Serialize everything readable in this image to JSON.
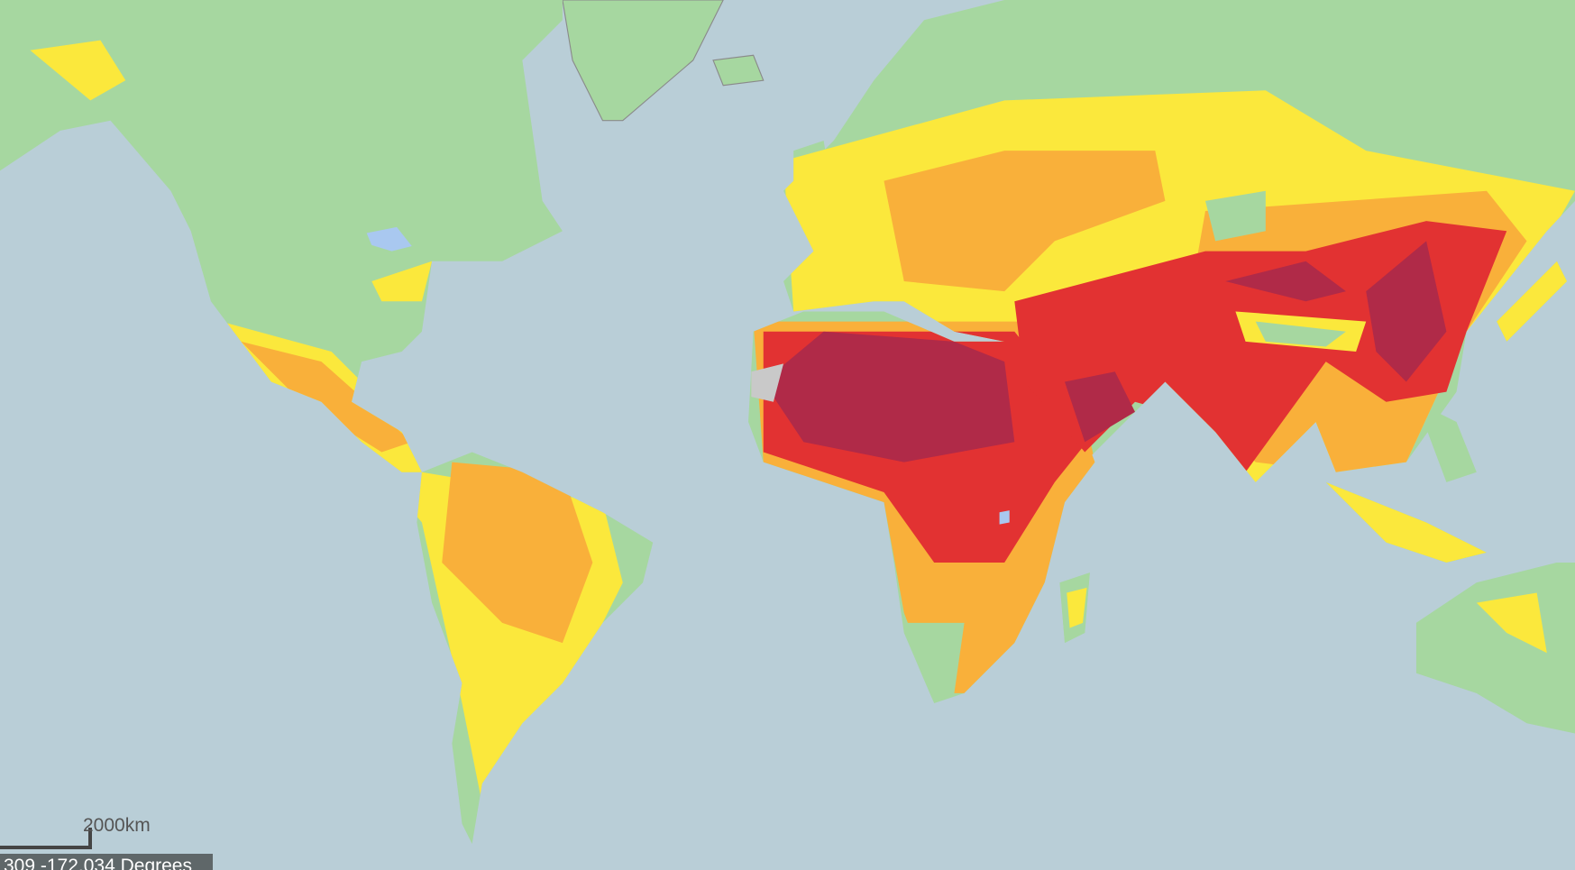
{
  "map": {
    "colors": {
      "ocean": "#b9ced7",
      "land": "#a6d7a0",
      "lakes": "#a9c8f0",
      "low": "#fbe83c",
      "moderate": "#f9b03a",
      "high": "#f25c2a",
      "very_high": "#e23232",
      "extreme": "#b02a48",
      "no_data": "#c9c9c9",
      "borders": "#8a8a8a"
    }
  },
  "scale_bar": {
    "label": "2000km"
  },
  "coordinates": {
    "text": "309 -172.034 Degrees"
  }
}
